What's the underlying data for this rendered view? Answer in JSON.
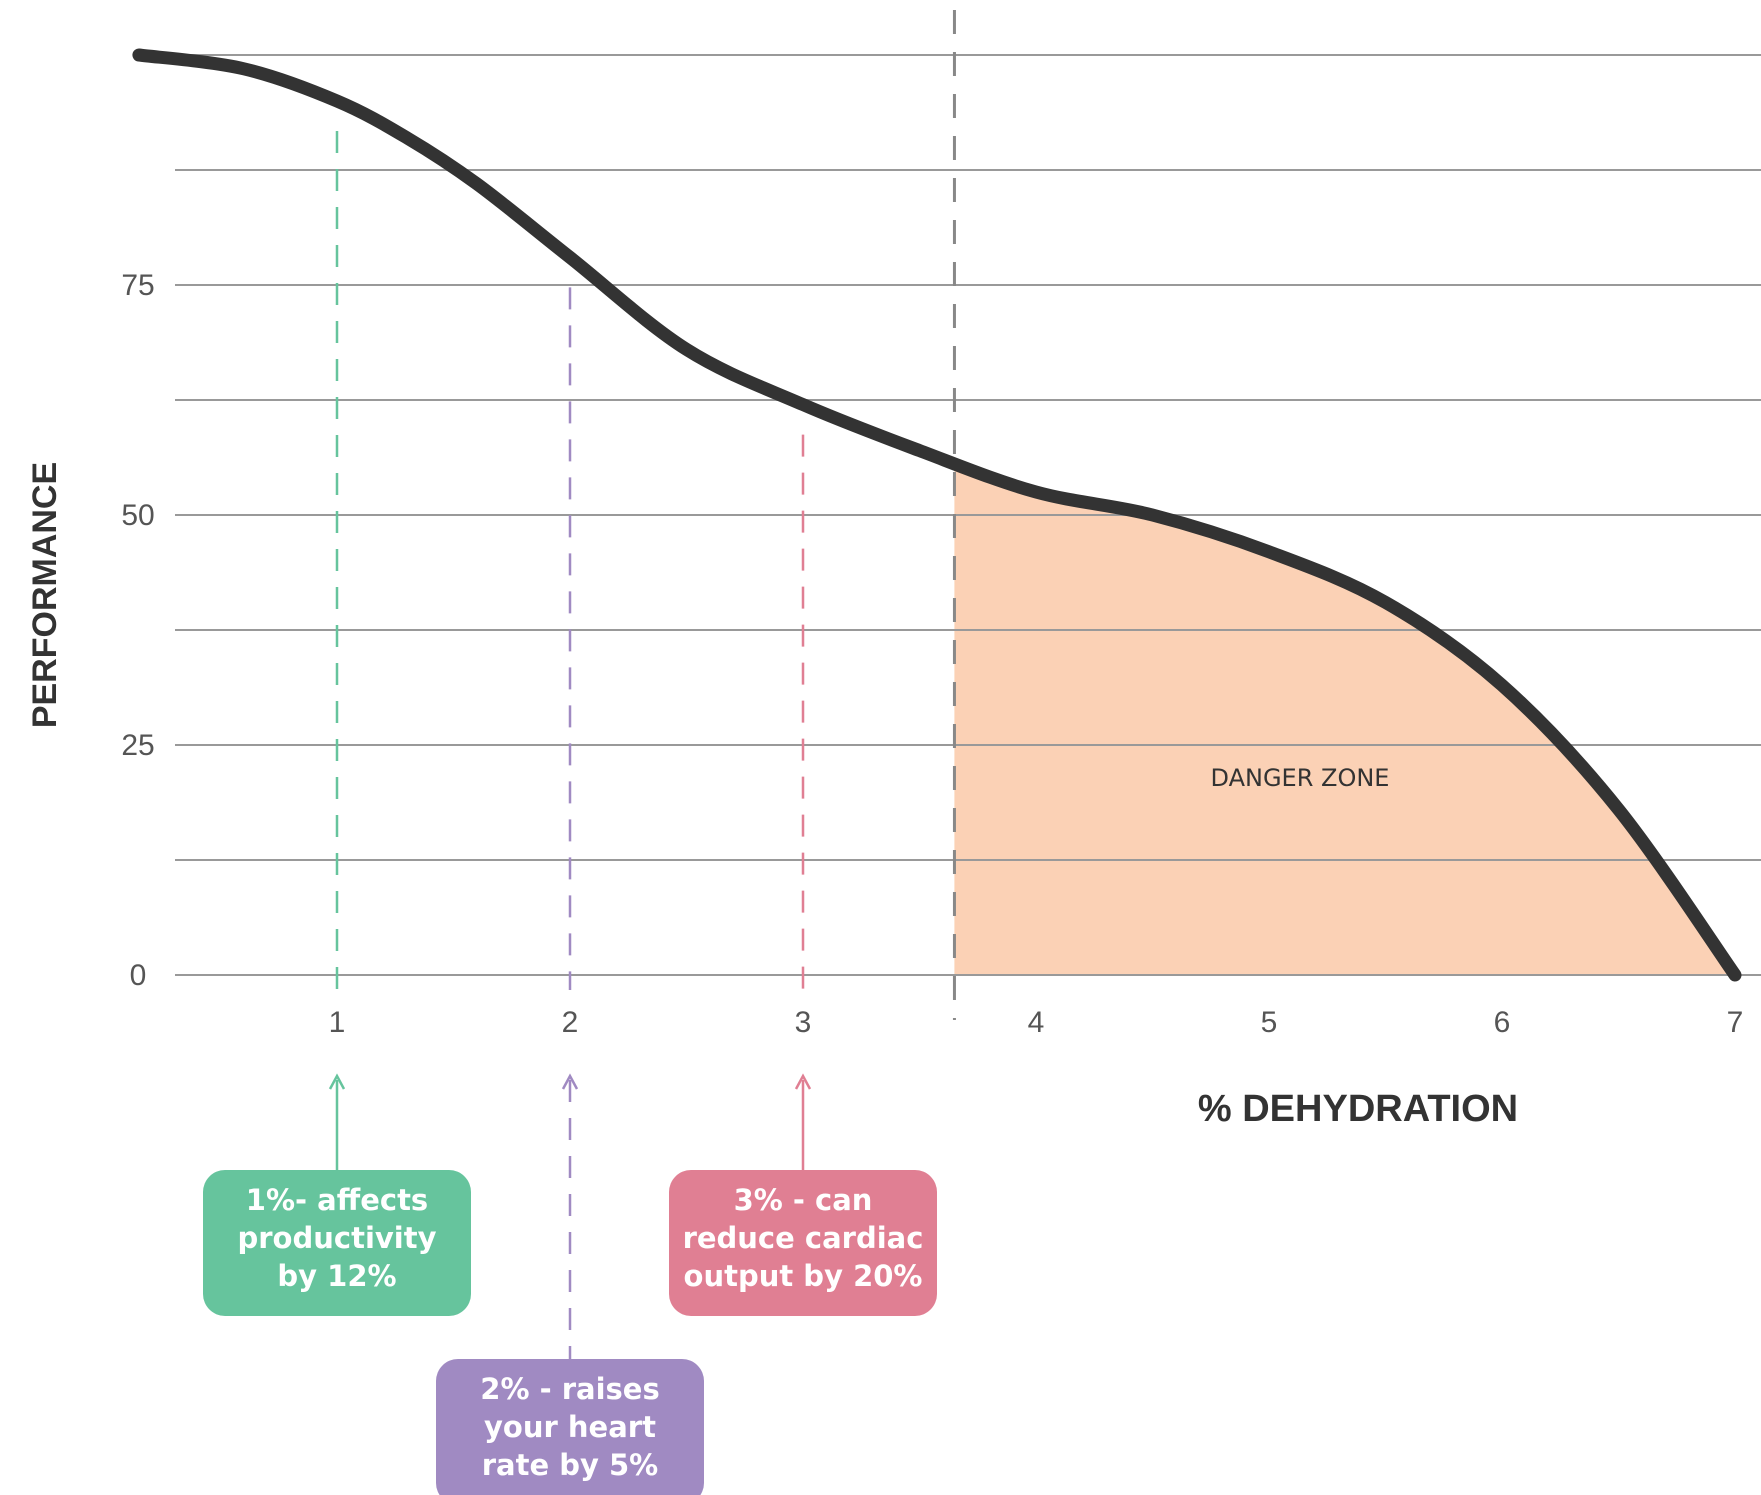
{
  "chart_data": {
    "type": "area",
    "title": "",
    "xlabel": "% DEHYDRATION",
    "ylabel": "PERFORMANCE",
    "x_ticks": [
      1,
      2,
      3,
      4,
      5,
      6,
      7
    ],
    "y_ticks": [
      0,
      25,
      50,
      75
    ],
    "xlim": [
      0,
      7
    ],
    "ylim": [
      0,
      100
    ],
    "grid": true,
    "series": [
      {
        "values_note": "",
        "x": [
          0.15,
          0.6,
          1.0,
          1.3,
          1.6,
          2.0,
          2.5,
          3.0,
          3.5,
          4.0,
          4.5,
          5.0,
          5.5,
          6.0,
          6.5,
          7.0
        ],
        "y": [
          100,
          98.5,
          95,
          91,
          86,
          78,
          68,
          62,
          57,
          52.5,
          50,
          46,
          40.5,
          31.5,
          18,
          0
        ]
      }
    ],
    "danger_zone": {
      "label": "DANGER ZONE",
      "x_start": 3.65,
      "color": "#fbd1b5"
    },
    "threshold_line_x": 3.65,
    "annotations": [
      {
        "x": 1,
        "lines": [
          "1%- affects",
          "productivity",
          "by 12%"
        ],
        "color": "#66c49d"
      },
      {
        "x": 2,
        "lines": [
          "2% - raises",
          "your heart",
          "rate by 5%"
        ],
        "color": "#a08ac2"
      },
      {
        "x": 3,
        "lines": [
          "3% -  can",
          "reduce cardiac",
          "output by 20%"
        ],
        "color": "#e07f93"
      }
    ],
    "colors": {
      "curve": "#333333",
      "grid": "#999999",
      "threshold": "#888888"
    }
  }
}
